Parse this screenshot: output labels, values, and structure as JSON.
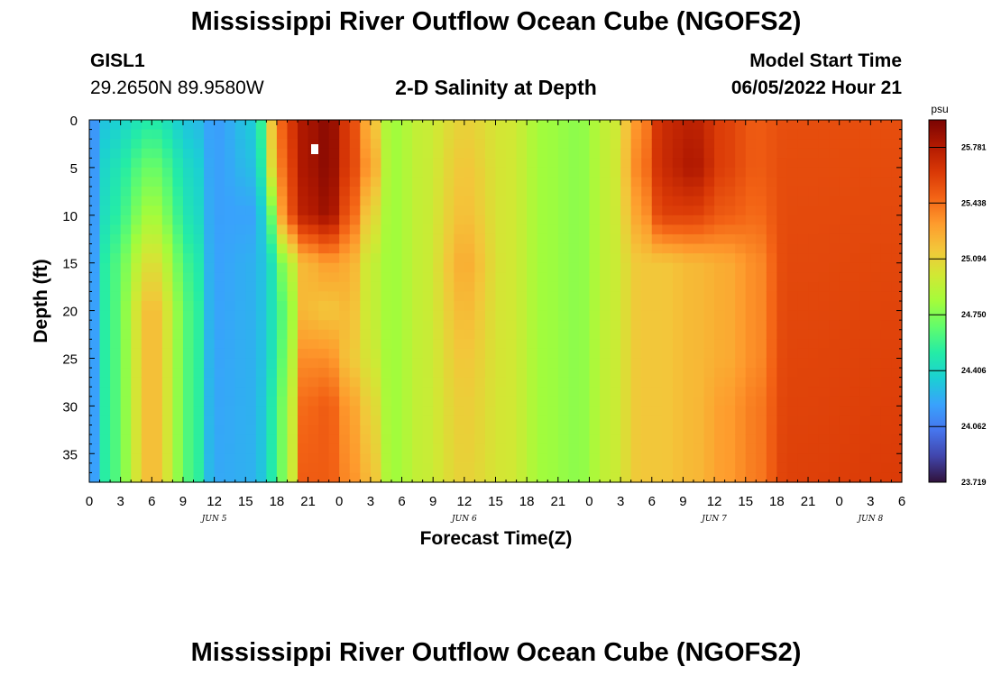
{
  "header": {
    "title": "Mississippi River Outflow Ocean Cube (NGOFS2)",
    "station": "GISL1",
    "coords": "29.2650N  89.9580W",
    "subtitle": "2-D Salinity at Depth",
    "start_label": "Model Start Time",
    "start_value": "06/05/2022 Hour 21"
  },
  "footer": {
    "title": "Mississippi River Outflow Ocean Cube (NGOFS2)"
  },
  "chart_data": {
    "type": "heatmap",
    "title": "2-D Salinity at Depth",
    "xlabel": "Forecast Time(Z)",
    "ylabel": "Depth (ft)",
    "colorbar_unit": "psu",
    "x_tick_labels": [
      "0",
      "3",
      "6",
      "9",
      "12",
      "15",
      "18",
      "21",
      "0",
      "3",
      "6",
      "9",
      "12",
      "15",
      "18",
      "21",
      "0",
      "3",
      "6",
      "9",
      "12",
      "15",
      "18",
      "21",
      "0",
      "3",
      "6"
    ],
    "day_labels": [
      {
        "label": "JUN 5",
        "hour": 12
      },
      {
        "label": "JUN 6",
        "hour": 36
      },
      {
        "label": "JUN 7",
        "hour": 60
      },
      {
        "label": "JUN 8",
        "hour": 75
      }
    ],
    "x_range_hours": [
      0,
      78
    ],
    "y_ticks": [
      0,
      5,
      10,
      15,
      20,
      25,
      30,
      35
    ],
    "y_range_ft": [
      0,
      38
    ],
    "colorbar_ticks": [
      23.719,
      24.062,
      24.406,
      24.75,
      25.094,
      25.438,
      25.781
    ],
    "colorbar_range": [
      23.719,
      25.95
    ],
    "cmap": [
      "#30123b",
      "#4145ab",
      "#4675ed",
      "#39a2fc",
      "#1bcfd4",
      "#24eca6",
      "#61fc6c",
      "#a4fc3b",
      "#d1e834",
      "#f3c63a",
      "#fe9b2d",
      "#f36315",
      "#d93806",
      "#b11901",
      "#7a0402"
    ],
    "profiles": [
      {
        "hour": 0,
        "depth": [
          0,
          38
        ],
        "sal": [
          24.12,
          24.12
        ]
      },
      {
        "hour": 2,
        "depth": [
          0,
          5,
          10,
          15,
          20,
          25,
          30,
          38
        ],
        "sal": [
          24.35,
          24.45,
          24.5,
          24.6,
          24.6,
          24.6,
          24.6,
          24.6
        ]
      },
      {
        "hour": 6,
        "depth": [
          0,
          5,
          10,
          15,
          20,
          25,
          30,
          38
        ],
        "sal": [
          24.5,
          24.7,
          24.85,
          25.05,
          25.2,
          25.2,
          25.2,
          25.2
        ]
      },
      {
        "hour": 10,
        "depth": [
          0,
          5,
          10,
          15,
          20,
          25,
          30,
          38
        ],
        "sal": [
          24.3,
          24.4,
          24.45,
          24.55,
          24.6,
          24.6,
          24.6,
          24.6
        ]
      },
      {
        "hour": 12,
        "depth": [
          0,
          38
        ],
        "sal": [
          24.18,
          24.22
        ]
      },
      {
        "hour": 16,
        "depth": [
          0,
          5,
          10,
          15,
          20,
          25,
          30,
          38
        ],
        "sal": [
          24.35,
          24.3,
          24.2,
          24.25,
          24.25,
          24.25,
          24.25,
          24.25
        ]
      },
      {
        "hour": 17.5,
        "depth": [
          0,
          5,
          10,
          15,
          20,
          25,
          30,
          38
        ],
        "sal": [
          25.15,
          25.05,
          24.7,
          24.45,
          24.45,
          24.45,
          24.5,
          24.5
        ]
      },
      {
        "hour": 19,
        "depth": [
          0,
          5,
          10,
          15,
          20,
          25,
          30,
          38
        ],
        "sal": [
          25.6,
          25.55,
          25.5,
          24.85,
          24.7,
          24.75,
          24.8,
          24.8
        ]
      },
      {
        "hour": 20.5,
        "depth": [
          0,
          5,
          10,
          15,
          20,
          25,
          30,
          38
        ],
        "sal": [
          25.8,
          25.8,
          25.75,
          25.2,
          25.2,
          25.35,
          25.45,
          25.5
        ]
      },
      {
        "hour": 23,
        "depth": [
          0,
          5,
          10,
          15,
          20,
          25,
          30,
          38
        ],
        "sal": [
          25.9,
          25.9,
          25.85,
          25.3,
          25.15,
          25.35,
          25.5,
          25.5
        ]
      },
      {
        "hour": 25,
        "depth": [
          0,
          5,
          10,
          15,
          20,
          25,
          30,
          38
        ],
        "sal": [
          25.6,
          25.6,
          25.5,
          25.25,
          25.2,
          25.15,
          25.3,
          25.35
        ]
      },
      {
        "hour": 27,
        "depth": [
          0,
          5,
          10,
          15,
          20,
          25,
          30,
          38
        ],
        "sal": [
          25.2,
          25.3,
          25.1,
          24.95,
          24.95,
          25.0,
          25.1,
          25.2
        ]
      },
      {
        "hour": 29,
        "depth": [
          0,
          38
        ],
        "sal": [
          24.82,
          24.82
        ]
      },
      {
        "hour": 32,
        "depth": [
          0,
          38
        ],
        "sal": [
          24.95,
          24.95
        ]
      },
      {
        "hour": 36,
        "depth": [
          0,
          5,
          10,
          15,
          20,
          25,
          30,
          38
        ],
        "sal": [
          25.1,
          25.15,
          25.18,
          25.25,
          25.2,
          25.15,
          25.12,
          25.1
        ]
      },
      {
        "hour": 40,
        "depth": [
          0,
          38
        ],
        "sal": [
          25.0,
          25.0
        ]
      },
      {
        "hour": 44,
        "depth": [
          0,
          38
        ],
        "sal": [
          24.82,
          24.82
        ]
      },
      {
        "hour": 47,
        "depth": [
          0,
          38
        ],
        "sal": [
          24.78,
          24.78
        ]
      },
      {
        "hour": 50,
        "depth": [
          0,
          38
        ],
        "sal": [
          24.95,
          24.95
        ]
      },
      {
        "hour": 53,
        "depth": [
          0,
          5,
          10,
          15,
          20,
          25,
          30,
          38
        ],
        "sal": [
          25.35,
          25.4,
          25.3,
          25.15,
          25.15,
          25.15,
          25.15,
          25.15
        ]
      },
      {
        "hour": 55,
        "depth": [
          0,
          5,
          10,
          15,
          20,
          25,
          30,
          38
        ],
        "sal": [
          25.7,
          25.7,
          25.6,
          25.15,
          25.15,
          25.15,
          25.15,
          25.15
        ]
      },
      {
        "hour": 58,
        "depth": [
          0,
          5,
          10,
          15,
          20,
          25,
          30,
          38
        ],
        "sal": [
          25.75,
          25.8,
          25.6,
          25.2,
          25.2,
          25.2,
          25.2,
          25.2
        ]
      },
      {
        "hour": 61,
        "depth": [
          0,
          5,
          10,
          15,
          20,
          25,
          30,
          38
        ],
        "sal": [
          25.6,
          25.6,
          25.5,
          25.25,
          25.25,
          25.25,
          25.3,
          25.3
        ]
      },
      {
        "hour": 64,
        "depth": [
          0,
          5,
          10,
          15,
          20,
          25,
          30,
          38
        ],
        "sal": [
          25.5,
          25.5,
          25.45,
          25.35,
          25.35,
          25.35,
          25.4,
          25.4
        ]
      },
      {
        "hour": 67,
        "depth": [
          0,
          38
        ],
        "sal": [
          25.55,
          25.6
        ]
      },
      {
        "hour": 78,
        "depth": [
          0,
          38
        ],
        "sal": [
          25.55,
          25.62
        ]
      }
    ]
  }
}
